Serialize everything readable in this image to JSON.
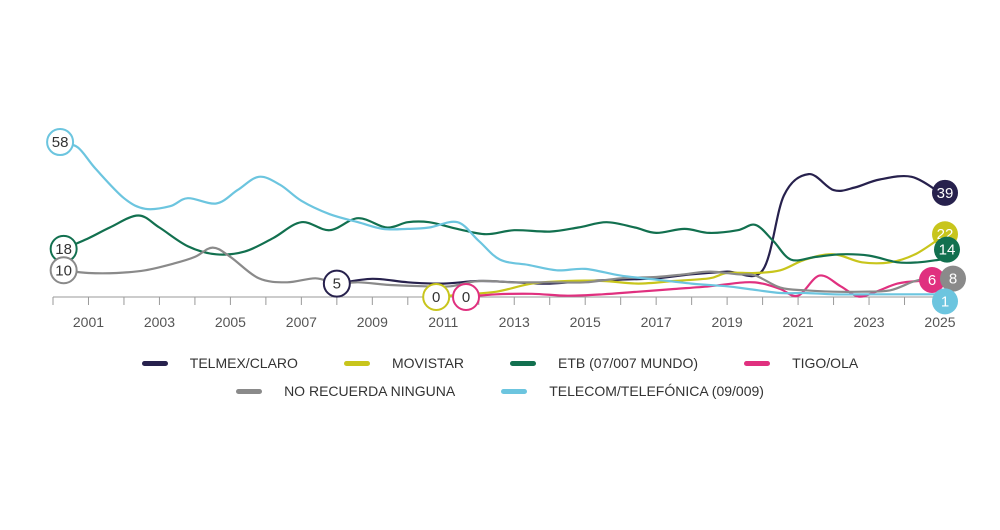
{
  "chart_data": {
    "type": "line",
    "title": "",
    "xlabel": "",
    "ylabel": "",
    "xlim": [
      2000,
      2025
    ],
    "ylim": [
      0,
      70
    ],
    "x_ticks": [
      "2001",
      "2003",
      "2005",
      "2007",
      "2009",
      "2011",
      "2013",
      "2015",
      "2017",
      "2019",
      "2021",
      "2023",
      "2025"
    ],
    "series": [
      {
        "name": "TELMEX/CLARO",
        "color": "#27214d",
        "start_label": "5",
        "end_label": "39",
        "points": [
          [
            2008,
            5
          ],
          [
            2009,
            6.8
          ],
          [
            2010,
            5.5
          ],
          [
            2011,
            5
          ],
          [
            2012,
            6
          ],
          [
            2013,
            5.5
          ],
          [
            2014,
            5
          ],
          [
            2015,
            6
          ],
          [
            2016,
            6.5
          ],
          [
            2017,
            7
          ],
          [
            2018,
            8.5
          ],
          [
            2019,
            9.5
          ],
          [
            2020,
            10
          ],
          [
            2020.6,
            38
          ],
          [
            2021.3,
            46
          ],
          [
            2022,
            40
          ],
          [
            2022.6,
            41
          ],
          [
            2023.3,
            44
          ],
          [
            2024.2,
            45
          ],
          [
            2025,
            39
          ]
        ]
      },
      {
        "name": "MOVISTAR",
        "color": "#c8c51c",
        "start_label": "0",
        "end_label": "22",
        "points": [
          [
            2010.8,
            0
          ],
          [
            2011.6,
            1
          ],
          [
            2012.5,
            2
          ],
          [
            2013.5,
            5
          ],
          [
            2014.5,
            6
          ],
          [
            2015.5,
            6
          ],
          [
            2016.5,
            5
          ],
          [
            2017.5,
            6
          ],
          [
            2018.5,
            7
          ],
          [
            2019,
            9
          ],
          [
            2019.8,
            9
          ],
          [
            2020.5,
            10
          ],
          [
            2021.2,
            14
          ],
          [
            2022,
            16
          ],
          [
            2022.8,
            13
          ],
          [
            2023.6,
            13
          ],
          [
            2024.3,
            16
          ],
          [
            2025,
            22
          ]
        ]
      },
      {
        "name": "ETB (07/007 MUNDO)",
        "color": "#12704f",
        "start_label": "18",
        "end_label": "14",
        "points": [
          [
            2000.3,
            18
          ],
          [
            2001,
            22
          ],
          [
            2001.6,
            26
          ],
          [
            2002.4,
            30.5
          ],
          [
            2003,
            26
          ],
          [
            2003.8,
            19
          ],
          [
            2004.6,
            16
          ],
          [
            2005.4,
            17
          ],
          [
            2006.2,
            22
          ],
          [
            2007,
            28
          ],
          [
            2007.8,
            25
          ],
          [
            2008.6,
            29.5
          ],
          [
            2009.4,
            26
          ],
          [
            2010,
            28
          ],
          [
            2010.6,
            28
          ],
          [
            2011.4,
            25.5
          ],
          [
            2012.2,
            23.5
          ],
          [
            2013,
            25
          ],
          [
            2014,
            24.5
          ],
          [
            2014.8,
            26
          ],
          [
            2015.6,
            28
          ],
          [
            2016.4,
            26
          ],
          [
            2017,
            24
          ],
          [
            2017.8,
            25.5
          ],
          [
            2018.5,
            24
          ],
          [
            2019.3,
            25
          ],
          [
            2019.8,
            27
          ],
          [
            2020.3,
            21
          ],
          [
            2020.8,
            14
          ],
          [
            2021.5,
            15
          ],
          [
            2022.2,
            16
          ],
          [
            2023,
            15.5
          ],
          [
            2023.8,
            13
          ],
          [
            2024.4,
            13
          ],
          [
            2025,
            14
          ]
        ]
      },
      {
        "name": "TIGO/OLA",
        "color": "#e0307f",
        "start_label": "0",
        "end_label": "6",
        "points": [
          [
            2011.5,
            0
          ],
          [
            2012.5,
            1
          ],
          [
            2013.5,
            1.2
          ],
          [
            2014.5,
            0.5
          ],
          [
            2015.5,
            1
          ],
          [
            2016.5,
            2
          ],
          [
            2017.5,
            3
          ],
          [
            2018.5,
            4
          ],
          [
            2019.5,
            5.5
          ],
          [
            2020,
            5
          ],
          [
            2020.5,
            3
          ],
          [
            2021,
            0.5
          ],
          [
            2021.6,
            8
          ],
          [
            2022.2,
            4
          ],
          [
            2022.7,
            0.2
          ],
          [
            2023.2,
            2
          ],
          [
            2023.8,
            5
          ],
          [
            2024.4,
            6
          ],
          [
            2025,
            6
          ]
        ]
      },
      {
        "name": "NO RECUERDA NINGUNA",
        "color": "#8a8a8a",
        "start_label": "10",
        "end_label": "8",
        "points": [
          [
            2000.3,
            10
          ],
          [
            2001,
            9
          ],
          [
            2001.8,
            9
          ],
          [
            2002.6,
            10
          ],
          [
            2003.4,
            12.5
          ],
          [
            2004,
            15
          ],
          [
            2004.5,
            18.5
          ],
          [
            2005,
            15
          ],
          [
            2005.8,
            7
          ],
          [
            2006.6,
            5.5
          ],
          [
            2007.4,
            7
          ],
          [
            2008,
            5
          ],
          [
            2008.6,
            5.5
          ],
          [
            2009.5,
            4.5
          ],
          [
            2010.5,
            4
          ],
          [
            2011.2,
            4
          ],
          [
            2012,
            6
          ],
          [
            2013,
            5.5
          ],
          [
            2014,
            5.5
          ],
          [
            2015,
            5.5
          ],
          [
            2016,
            7
          ],
          [
            2017,
            7.5
          ],
          [
            2017.8,
            8.5
          ],
          [
            2018.5,
            9.5
          ],
          [
            2019.3,
            8.5
          ],
          [
            2019.8,
            8
          ],
          [
            2020.5,
            3.5
          ],
          [
            2021.2,
            2.5
          ],
          [
            2022,
            2
          ],
          [
            2022.8,
            2
          ],
          [
            2023.6,
            2.5
          ],
          [
            2024.3,
            6
          ],
          [
            2025,
            8
          ]
        ]
      },
      {
        "name": "TELECOM/TELEFÓNICA (09/009)",
        "color": "#6cc5df",
        "start_label": "58",
        "end_label": "1",
        "points": [
          [
            2000.2,
            58
          ],
          [
            2000.7,
            56
          ],
          [
            2001.2,
            48
          ],
          [
            2002,
            37
          ],
          [
            2002.6,
            33
          ],
          [
            2003.3,
            34
          ],
          [
            2003.8,
            37
          ],
          [
            2004.6,
            35
          ],
          [
            2005.2,
            40
          ],
          [
            2005.8,
            45
          ],
          [
            2006.4,
            42
          ],
          [
            2007,
            36
          ],
          [
            2007.8,
            31
          ],
          [
            2008.6,
            28
          ],
          [
            2009.3,
            25.5
          ],
          [
            2010,
            25.5
          ],
          [
            2010.6,
            26
          ],
          [
            2011.4,
            28
          ],
          [
            2012,
            21
          ],
          [
            2012.6,
            14
          ],
          [
            2013.4,
            12
          ],
          [
            2014.2,
            10
          ],
          [
            2015,
            10.5
          ],
          [
            2016,
            8
          ],
          [
            2017,
            6.5
          ],
          [
            2018,
            5
          ],
          [
            2019,
            4
          ],
          [
            2019.6,
            3
          ],
          [
            2020.5,
            1.5
          ],
          [
            2021.2,
            1.5
          ],
          [
            2022,
            1
          ],
          [
            2023,
            1
          ],
          [
            2024,
            1
          ],
          [
            2025,
            1
          ]
        ]
      }
    ]
  }
}
